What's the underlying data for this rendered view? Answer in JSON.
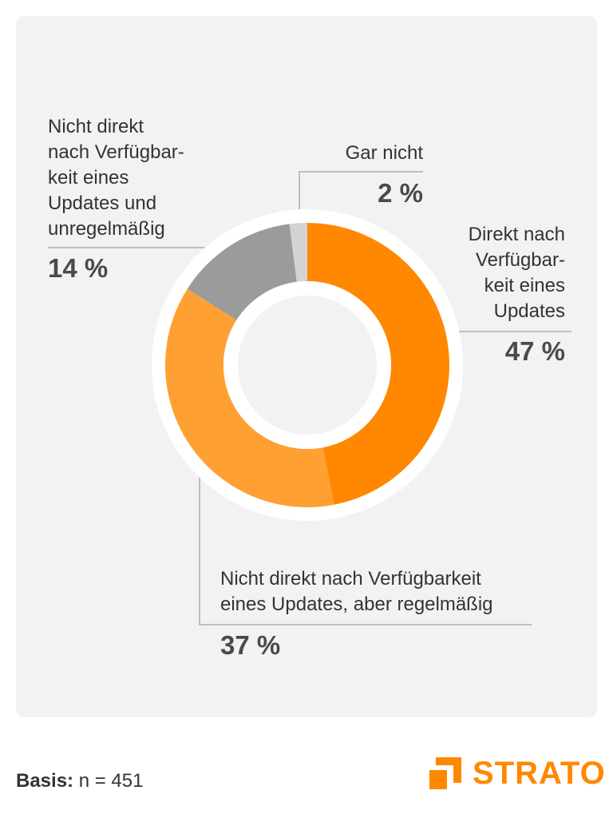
{
  "chart_data": {
    "type": "pie",
    "donut": true,
    "categories": [
      "Direkt nach Verfügbar-\nkeit eines\nUpdates",
      "Nicht direkt nach Verfügbarkeit\neines Updates, aber regelmäßig",
      "Nicht direkt\nnach Verfügbar-\nkeit eines\nUpdates und\nunregelmäßig",
      "Gar nicht"
    ],
    "values": [
      47,
      37,
      14,
      2
    ],
    "value_labels": [
      "47 %",
      "37 %",
      "14 %",
      "2 %"
    ],
    "colors": [
      "#ff8800",
      "#ffa033",
      "#9b9b9b",
      "#d3d3d3"
    ]
  },
  "footer": {
    "basis_label": "Basis:",
    "basis_value": " n = 451"
  },
  "logo": {
    "text": "STRATO",
    "color": "#ff8800"
  }
}
